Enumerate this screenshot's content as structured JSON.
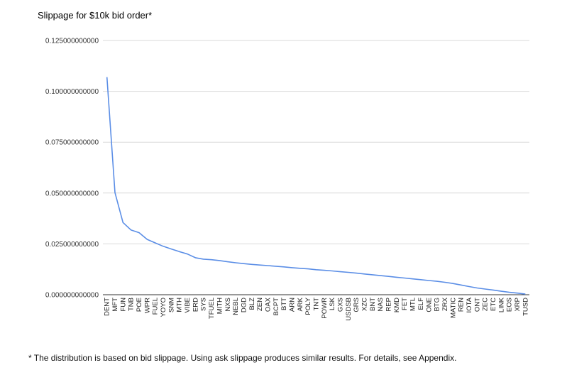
{
  "chart_data": {
    "type": "line",
    "title": "Slippage for $10k bid order*",
    "xlabel": "",
    "ylabel": "",
    "ylim": [
      0,
      0.125
    ],
    "y_tick_labels": [
      "0.000000000000",
      "0.025000000000",
      "0.050000000000",
      "0.075000000000",
      "0.100000000000",
      "0.125000000000"
    ],
    "y_tick_values": [
      0,
      0.025,
      0.05,
      0.075,
      0.1,
      0.125
    ],
    "grid": true,
    "x_tick_labels": [
      "DENT",
      "MFT",
      "FUN",
      "TNB",
      "POE",
      "WPR",
      "FUEL",
      "YOYO",
      "SNM",
      "MTH",
      "VIBE",
      "ERD",
      "SYS",
      "TFUEL",
      "MITH",
      "NXS",
      "NEBL",
      "DGD",
      "BLZ",
      "ZEN",
      "OAX",
      "BCPT",
      "BTT",
      "ARN",
      "ARK",
      "POLY",
      "TNT",
      "POWR",
      "LSK",
      "GXS",
      "USDSB",
      "GRS",
      "XZC",
      "BNT",
      "NAS",
      "REP",
      "KMD",
      "FET",
      "MTL",
      "ELF",
      "ONE",
      "BTG",
      "ZRX",
      "MATIC",
      "REN",
      "IOTA",
      "ONT",
      "ZEC",
      "ETC",
      "LINK",
      "EOS",
      "XRP",
      "TUSD"
    ],
    "series": [
      {
        "color": "#5b8ee6",
        "values": [
          0.107,
          0.0502,
          0.0355,
          0.0318,
          0.0305,
          0.0272,
          0.0255,
          0.0238,
          0.0225,
          0.0212,
          0.02,
          0.0182,
          0.0175,
          0.0172,
          0.0168,
          0.0162,
          0.0157,
          0.0153,
          0.0149,
          0.0146,
          0.0143,
          0.014,
          0.0137,
          0.0133,
          0.013,
          0.0127,
          0.0123,
          0.012,
          0.0117,
          0.0113,
          0.011,
          0.0106,
          0.0102,
          0.0098,
          0.0094,
          0.009,
          0.0086,
          0.0082,
          0.0078,
          0.0074,
          0.007,
          0.0066,
          0.0061,
          0.0055,
          0.0048,
          0.004,
          0.0033,
          0.0028,
          0.0023,
          0.0017,
          0.0012,
          0.0008,
          0.0003
        ]
      }
    ]
  },
  "footnote": "* The distribution is based on bid slippage. Using ask slippage produces similar results. For details, see Appendix."
}
